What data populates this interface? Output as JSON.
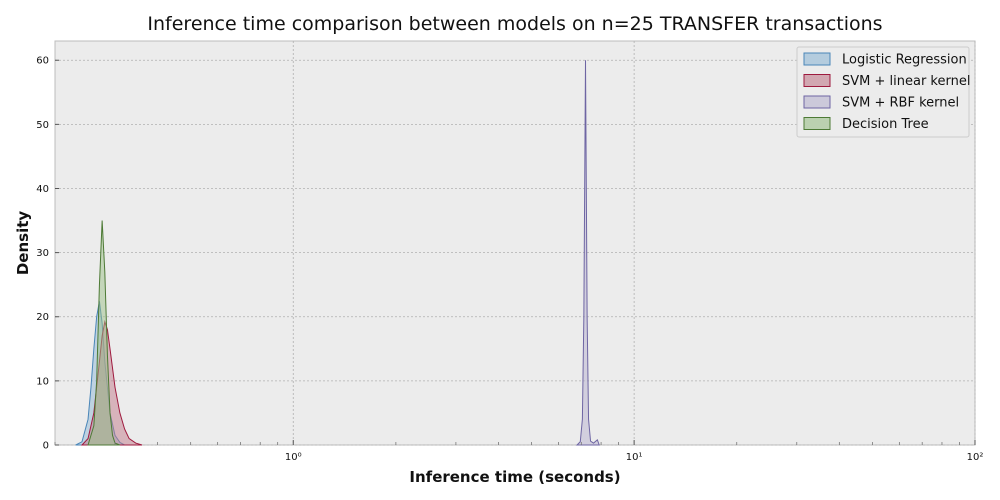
{
  "chart_data": {
    "type": "area",
    "title": "Inference time comparison between models on n=25 TRANSFER transactions",
    "xlabel": "Inference time (seconds)",
    "ylabel": "Density",
    "xscale": "log",
    "xlim": [
      0.2,
      100
    ],
    "ylim": [
      0,
      63
    ],
    "grid": true,
    "legend_position": "top-right",
    "x_ticks": [
      {
        "value": 1,
        "label": "10⁰"
      },
      {
        "value": 10,
        "label": "10¹"
      },
      {
        "value": 100,
        "label": "10²"
      }
    ],
    "y_ticks": [
      {
        "value": 0,
        "label": "0"
      },
      {
        "value": 10,
        "label": "10"
      },
      {
        "value": 20,
        "label": "20"
      },
      {
        "value": 30,
        "label": "30"
      },
      {
        "value": 40,
        "label": "40"
      },
      {
        "value": 50,
        "label": "50"
      },
      {
        "value": 60,
        "label": "60"
      }
    ],
    "series": [
      {
        "name": "Logistic Regression",
        "color": "#8fb8d6",
        "stroke": "#4a86b8",
        "x": [
          0.23,
          0.24,
          0.25,
          0.255,
          0.26,
          0.265,
          0.27,
          0.275,
          0.28,
          0.29,
          0.3,
          0.31,
          0.32
        ],
        "y": [
          0,
          0.5,
          4,
          9,
          15,
          20,
          22.4,
          19,
          13,
          5,
          1.5,
          0.4,
          0
        ]
      },
      {
        "name": "SVM + linear kernel",
        "color": "#c27a8a",
        "stroke": "#9e1a3e",
        "x": [
          0.24,
          0.25,
          0.26,
          0.27,
          0.275,
          0.28,
          0.285,
          0.29,
          0.3,
          0.31,
          0.32,
          0.33,
          0.345,
          0.36
        ],
        "y": [
          0,
          1,
          5,
          13,
          17,
          19.2,
          18,
          15,
          9,
          5,
          2.5,
          1,
          0.3,
          0
        ]
      },
      {
        "name": "SVM + RBF kernel",
        "color": "#b7b2cf",
        "stroke": "#6e65a3",
        "x": [
          6.8,
          6.95,
          7.05,
          7.12,
          7.17,
          7.2,
          7.23,
          7.28,
          7.35,
          7.45,
          7.6,
          7.8,
          7.9
        ],
        "y": [
          0,
          0.5,
          4,
          20,
          45,
          60,
          45,
          20,
          4,
          0.6,
          0.3,
          0.8,
          0
        ]
      },
      {
        "name": "Decision Tree",
        "color": "#9bbf88",
        "stroke": "#4d7a35",
        "x": [
          0.25,
          0.26,
          0.265,
          0.27,
          0.275,
          0.28,
          0.285,
          0.29,
          0.295,
          0.3,
          0.31
        ],
        "y": [
          0,
          3,
          10,
          25,
          35,
          27,
          14,
          5,
          1.5,
          0.3,
          0
        ]
      }
    ]
  }
}
